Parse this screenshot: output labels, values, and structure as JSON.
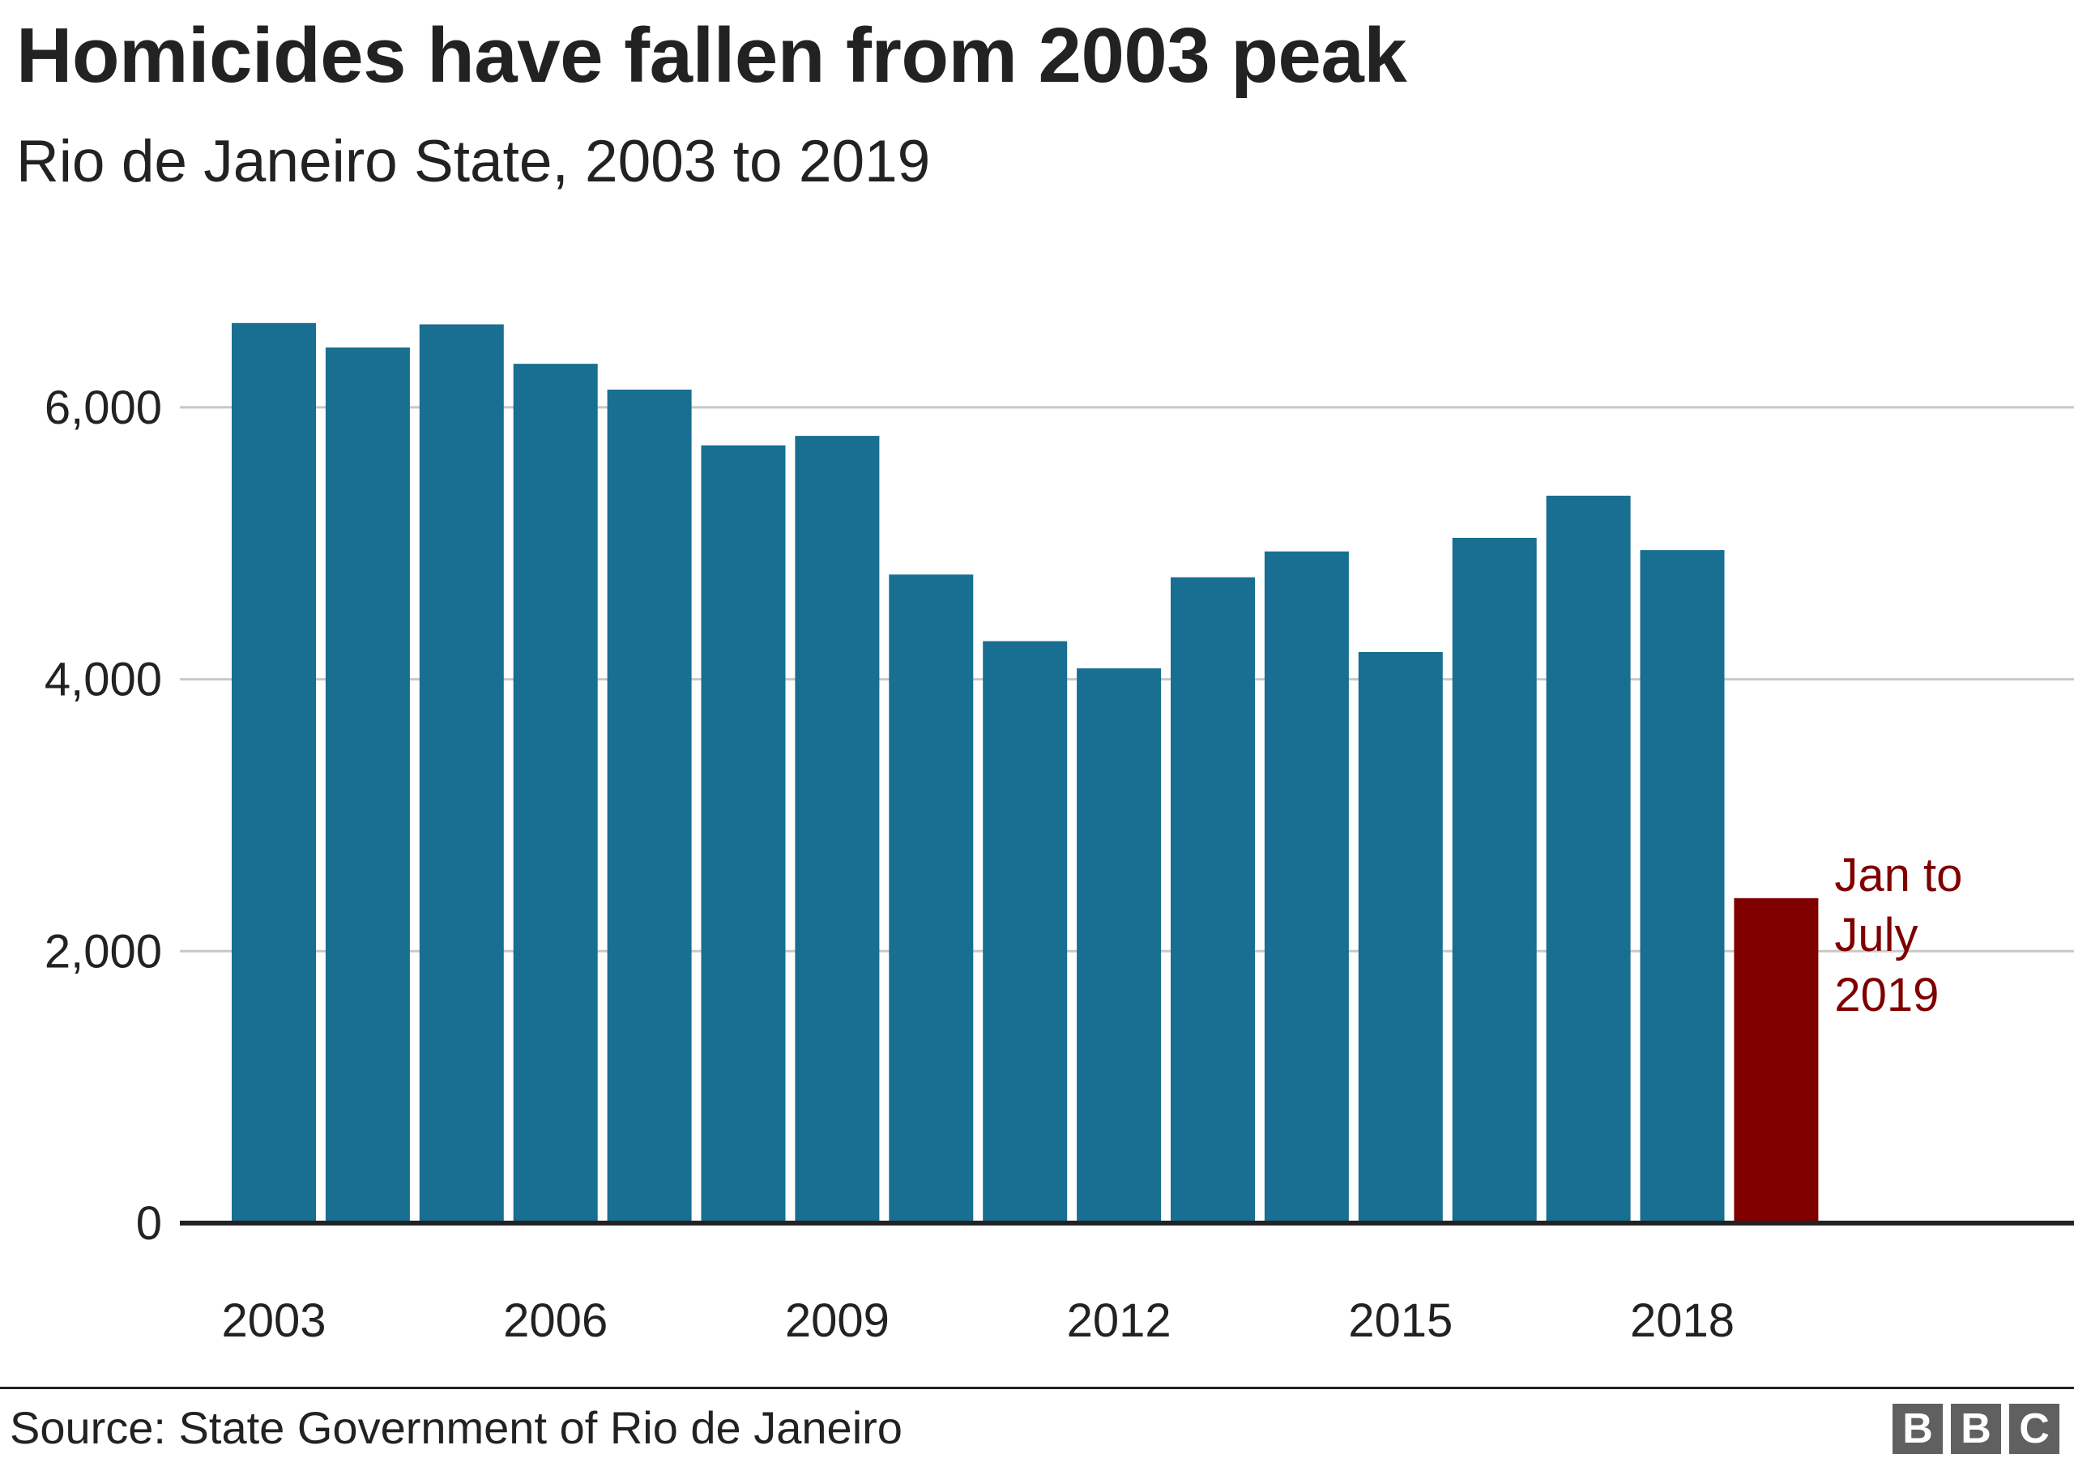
{
  "header": {
    "title": "Homicides have fallen from 2003 peak",
    "subtitle": "Rio de Janeiro State, 2003 to 2019"
  },
  "footer": {
    "source": "Source: State Government of Rio de Janeiro",
    "logo_letters": [
      "B",
      "B",
      "C"
    ]
  },
  "colors": {
    "bar": "#186f91",
    "highlight": "#800000",
    "grid": "#c8c8c8",
    "axis": "#222222",
    "text": "#222222"
  },
  "chart_data": {
    "type": "bar",
    "title": "Homicides have fallen from 2003 peak",
    "subtitle": "Rio de Janeiro State, 2003 to 2019",
    "xlabel": "",
    "ylabel": "",
    "categories": [
      "2003",
      "2004",
      "2005",
      "2006",
      "2007",
      "2008",
      "2009",
      "2010",
      "2011",
      "2012",
      "2013",
      "2014",
      "2015",
      "2016",
      "2017",
      "2018",
      "2019"
    ],
    "values": [
      6620,
      6440,
      6610,
      6320,
      6130,
      5720,
      5790,
      4770,
      4280,
      4080,
      4750,
      4940,
      4200,
      5040,
      5350,
      4950,
      2390
    ],
    "highlight_index": 16,
    "ylim": [
      0,
      7000
    ],
    "yticks": [
      0,
      2000,
      4000,
      6000
    ],
    "ytick_labels": [
      "0",
      "2,000",
      "4,000",
      "6,000"
    ],
    "xtick_labels": [
      "2003",
      "2006",
      "2009",
      "2012",
      "2015",
      "2018"
    ],
    "annotation": {
      "lines": [
        "Jan to",
        "July",
        "2019"
      ]
    },
    "grid": true,
    "legend": "none"
  }
}
